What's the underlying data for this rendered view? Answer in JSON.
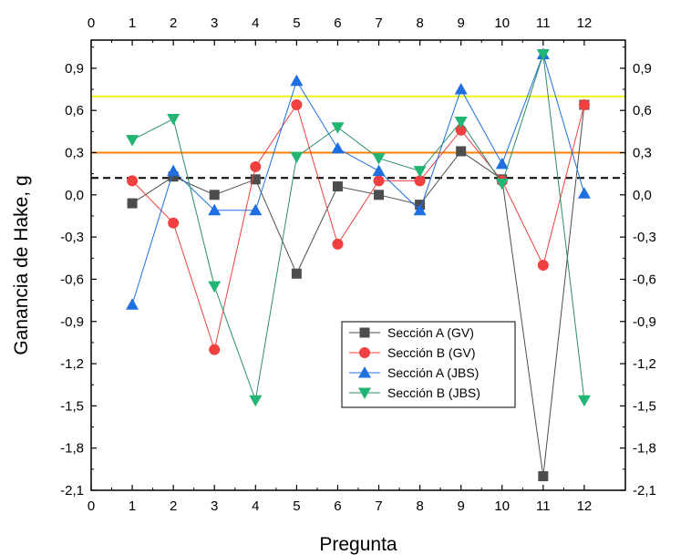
{
  "chart_data": {
    "type": "line",
    "xlabel": "Pregunta",
    "ylabel": "Ganancia de Hake, g",
    "xlim": [
      0,
      13
    ],
    "ylim": [
      -2.1,
      1.1
    ],
    "xticks": [
      0,
      1,
      2,
      3,
      4,
      5,
      6,
      7,
      8,
      9,
      10,
      11,
      12
    ],
    "xtick_labels": [
      "0",
      "1",
      "2",
      "3",
      "4",
      "5",
      "6",
      "7",
      "8",
      "9",
      "10",
      "11",
      "12"
    ],
    "yticks": [
      -2.1,
      -1.8,
      -1.5,
      -1.2,
      -0.9,
      -0.6,
      -0.3,
      0.0,
      0.3,
      0.6,
      0.9
    ],
    "ytick_labels": [
      "-2,1",
      "-1,8",
      "-1,5",
      "-1,2",
      "-0,9",
      "-0,6",
      "-0,3",
      "0,0",
      "0,3",
      "0,6",
      "0,9"
    ],
    "mirror_axes": true,
    "grid": false,
    "legend_position": "bottom-center",
    "x": [
      1,
      2,
      3,
      4,
      5,
      6,
      7,
      8,
      9,
      10,
      11,
      12
    ],
    "series": [
      {
        "name": "Sección A (GV)",
        "marker": "square",
        "color": "#4d4d4d",
        "line_color": "#4d4d4d",
        "values": [
          -0.06,
          0.13,
          0.0,
          0.11,
          -0.56,
          0.06,
          0.0,
          -0.07,
          0.31,
          0.11,
          -2.0,
          0.64
        ]
      },
      {
        "name": "Sección B (GV)",
        "marker": "circle",
        "color": "#f04040",
        "line_color": "#f04040",
        "values": [
          0.1,
          -0.2,
          -1.1,
          0.2,
          0.64,
          -0.35,
          0.1,
          0.1,
          0.46,
          0.1,
          -0.5,
          0.64
        ]
      },
      {
        "name": "Sección A (JBS)",
        "marker": "triangle-up",
        "color": "#1f6fe0",
        "line_color": "#1f6fe0",
        "values": [
          -0.78,
          0.17,
          -0.11,
          -0.11,
          0.81,
          0.33,
          0.17,
          -0.11,
          0.75,
          0.22,
          1.0,
          0.01
        ]
      },
      {
        "name": "Sección B (JBS)",
        "marker": "triangle-down",
        "color": "#22b573",
        "line_color": "#2e8b6a",
        "values": [
          0.39,
          0.54,
          -0.65,
          -1.46,
          0.27,
          0.48,
          0.26,
          0.17,
          0.52,
          0.08,
          1.0,
          -1.46
        ]
      }
    ],
    "reference_lines": [
      {
        "y": 0.7,
        "color": "#f2f21a",
        "style": "solid"
      },
      {
        "y": 0.3,
        "color": "#ff8000",
        "style": "solid"
      },
      {
        "y": 0.12,
        "color": "#000000",
        "style": "dashed"
      }
    ]
  }
}
